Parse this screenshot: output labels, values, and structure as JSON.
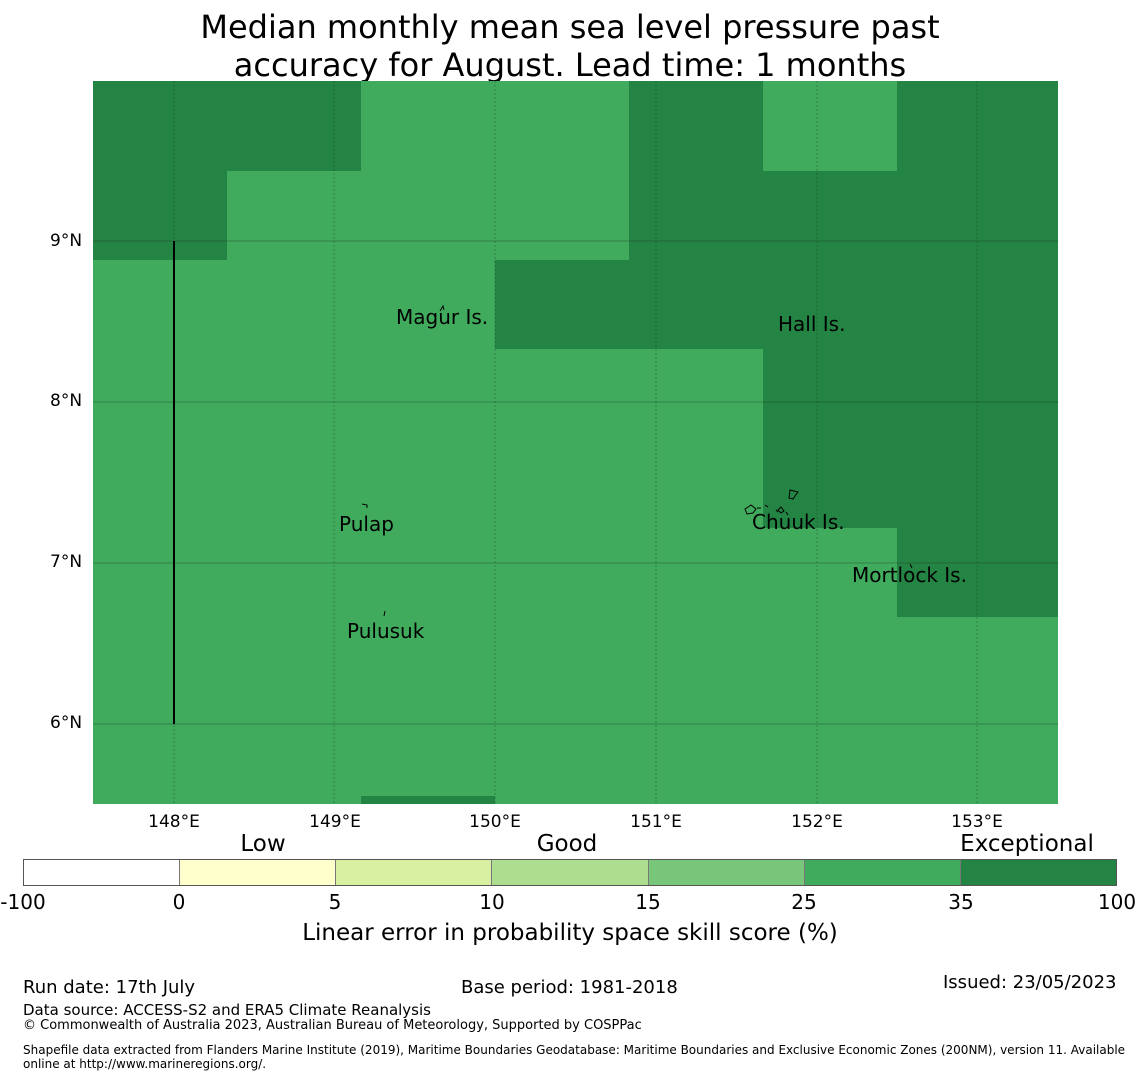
{
  "title": {
    "line1": "Median monthly mean sea level pressure past",
    "line2": "accuracy for August. Lead time: 1 months"
  },
  "map": {
    "latitude_labels": [
      "9°N",
      "8°N",
      "7°N",
      "6°N"
    ],
    "longitude_labels": [
      "148°E",
      "149°E",
      "150°E",
      "151°E",
      "152°E",
      "153°E"
    ],
    "places": [
      "Magur Is.",
      "Hall Is.",
      "Pulap",
      "Chuuk Is.",
      "Mortlock Is.",
      "Pulusuk"
    ],
    "colors": {
      "skill_25_35": "#41ab5d",
      "skill_35_100": "#238443",
      "grid": "#2f5f3a",
      "coast": "#000000"
    }
  },
  "legend": {
    "categories": [
      "Low",
      "Good",
      "Exceptional"
    ],
    "ticks": [
      "-100",
      "0",
      "5",
      "10",
      "15",
      "25",
      "35",
      "100"
    ],
    "colors": [
      "#ffffff",
      "#ffffcc",
      "#d9f0a3",
      "#addd8e",
      "#78c679",
      "#41ab5d",
      "#238443"
    ],
    "label": "Linear error in probability space skill score (%)"
  },
  "footer": {
    "run_date": "Run date: 17th July",
    "base_period": "Base period: 1981-2018",
    "issued": "Issued: 23/05/2023",
    "data_source": "Data source: ACCESS-S2 and ERA5 Climate Reanalysis",
    "copyright": "© Commonwealth of Australia 2023, Australian Bureau of Meteorology, Supported by COSPPac",
    "shapefile_line1": "Shapefile data extracted from Flanders Marine Institute (2019), Maritime Boundaries Geodatabase: Maritime Boundaries and Exclusive Economic Zones (200NM), version 11. Available",
    "shapefile_line2": "online at http://www.marineregions.org/."
  }
}
